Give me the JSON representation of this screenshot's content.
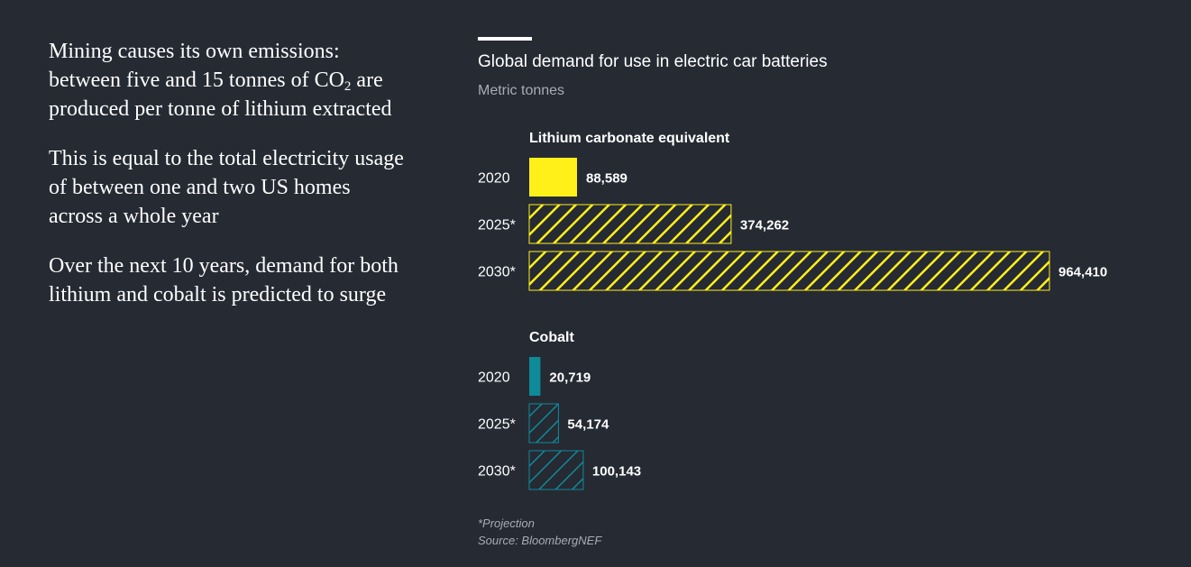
{
  "article": {
    "paragraphs": [
      {
        "before": "Mining causes its own emissions: between five and 15 tonnes of CO",
        "sub": "2",
        "after": " are produced per tonne of lithium extracted"
      },
      {
        "before": "This is equal to the total electricity usage of between one and two US homes across a whole year",
        "sub": "",
        "after": ""
      },
      {
        "before": "Over the next 10 years, demand for both lithium and cobalt is predicted to surge",
        "sub": "",
        "after": ""
      }
    ]
  },
  "chart_data": {
    "type": "bar",
    "orientation": "horizontal",
    "title": "Global demand for use in electric car batteries",
    "subtitle": "Metric tonnes",
    "xlim": [
      0,
      964410
    ],
    "grid": false,
    "groups": [
      {
        "name": "Lithium carbonate equivalent",
        "color": "#fff01a",
        "rows": [
          {
            "label": "2020",
            "value": 88589,
            "value_label": "88,589",
            "projection": false
          },
          {
            "label": "2025*",
            "value": 374262,
            "value_label": "374,262",
            "projection": true
          },
          {
            "label": "2030*",
            "value": 964410,
            "value_label": "964,410",
            "projection": true
          }
        ]
      },
      {
        "name": "Cobalt",
        "color": "#0f8a99",
        "rows": [
          {
            "label": "2020",
            "value": 20719,
            "value_label": "20,719",
            "projection": false
          },
          {
            "label": "2025*",
            "value": 54174,
            "value_label": "54,174",
            "projection": true
          },
          {
            "label": "2030*",
            "value": 100143,
            "value_label": "100,143",
            "projection": true
          }
        ]
      }
    ]
  },
  "footnote": {
    "projection_note": "*Projection",
    "source": "Source: BloombergNEF"
  }
}
